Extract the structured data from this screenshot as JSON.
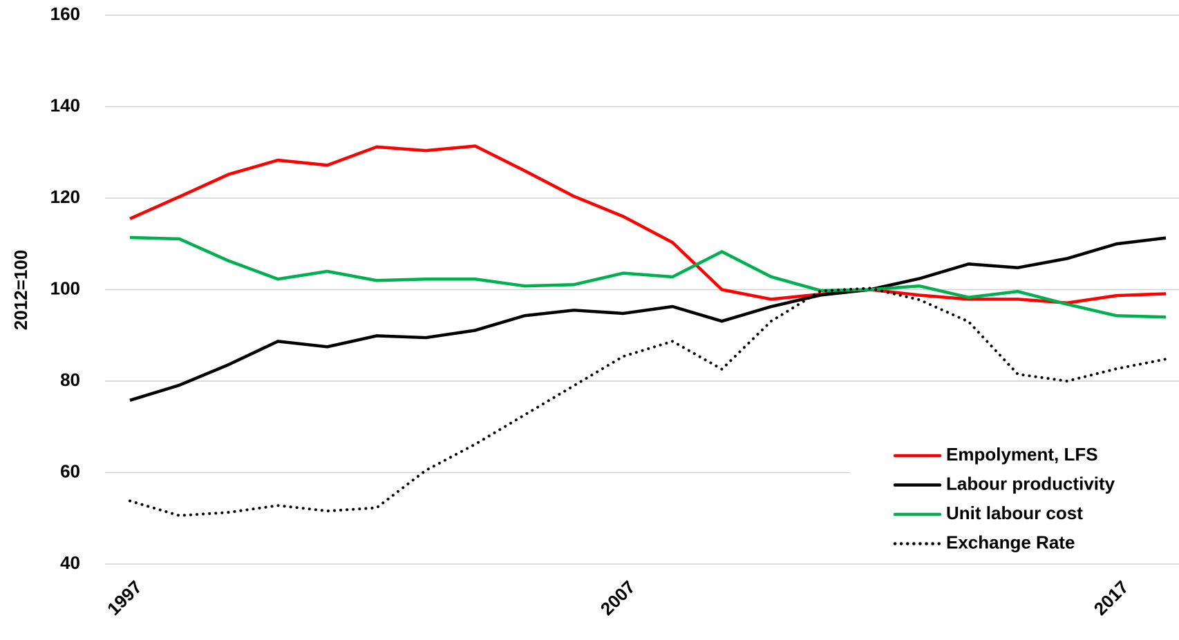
{
  "chart_data": {
    "type": "line",
    "y_label": "2012=100",
    "x": [
      1997,
      1998,
      1999,
      2000,
      2001,
      2002,
      2003,
      2004,
      2005,
      2006,
      2007,
      2008,
      2009,
      2010,
      2011,
      2012,
      2013,
      2014,
      2015,
      2016,
      2017,
      2018
    ],
    "xlim": [
      1997,
      2018
    ],
    "xticks": [
      1997,
      2007,
      2017
    ],
    "ylim": [
      40,
      160
    ],
    "yticks": [
      40,
      60,
      80,
      100,
      120,
      140,
      160
    ],
    "grid": true,
    "legend": "lower right",
    "series": [
      {
        "name": "Empolyment, LFS",
        "color": "#ff0000",
        "style": "solid",
        "values": [
          115.5,
          120.3,
          125.2,
          128.3,
          127.2,
          131.2,
          130.4,
          131.4,
          126,
          120.4,
          116,
          110.3,
          100,
          97.9,
          99,
          100,
          98.8,
          97.9,
          97.9,
          97.1,
          98.7,
          99.1
        ]
      },
      {
        "name": "Labour productivity",
        "color": "#000000",
        "style": "solid",
        "values": [
          75.8,
          79.1,
          83.6,
          88.7,
          87.5,
          89.9,
          89.5,
          91.1,
          94.3,
          95.5,
          94.8,
          96.3,
          93.1,
          96.3,
          98.8,
          100,
          102.4,
          105.6,
          104.8,
          106.8,
          110,
          111.3
        ]
      },
      {
        "name": "Unit labour cost",
        "color": "#00b050",
        "style": "solid",
        "values": [
          111.4,
          111.1,
          106.3,
          102.3,
          104,
          102,
          102.3,
          102.3,
          100.8,
          101.1,
          103.6,
          102.8,
          108.3,
          102.8,
          99.8,
          100,
          100.8,
          98.3,
          99.6,
          96.8,
          94.3,
          94.0
        ]
      },
      {
        "name": "Exchange Rate",
        "color": "#000000",
        "style": "dotted",
        "values": [
          53.8,
          50.6,
          51.3,
          52.8,
          51.6,
          52.3,
          60.5,
          66.2,
          72.6,
          79,
          85.4,
          88.7,
          82.6,
          93.1,
          99.7,
          100.3,
          97.8,
          93,
          81.5,
          80,
          82.7,
          84.8
        ]
      }
    ]
  }
}
